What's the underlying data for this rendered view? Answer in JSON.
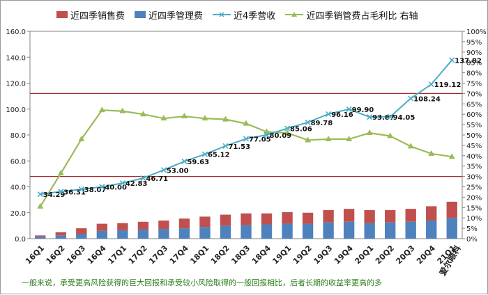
{
  "chart_data": {
    "type": "bar",
    "categories": [
      "16Q1",
      "16Q2",
      "16Q3",
      "16Q4",
      "17Q1",
      "17Q2",
      "17Q3",
      "17Q4",
      "18Q1",
      "18Q2",
      "18Q3",
      "18Q4",
      "19Q1",
      "19Q2",
      "19Q3",
      "19Q4",
      "20Q1",
      "20Q2",
      "20Q3",
      "20Q4",
      "21Q1"
    ],
    "series": [
      {
        "name": "近四季销售费",
        "kind": "bar-stack-top",
        "color": "#c0504d",
        "values": [
          1.0,
          2.5,
          4.5,
          5.5,
          5.5,
          6.0,
          6.5,
          7.5,
          8.0,
          8.5,
          9.0,
          8.5,
          9.0,
          8.5,
          9.5,
          10.0,
          10.0,
          9.5,
          10.0,
          11.0,
          12.5
        ]
      },
      {
        "name": "近四季管理费",
        "kind": "bar-stack-bottom",
        "color": "#4f81bd",
        "values": [
          1.5,
          2.5,
          3.5,
          6.0,
          6.5,
          7.0,
          7.5,
          8.0,
          9.0,
          10.0,
          10.5,
          11.0,
          11.5,
          11.5,
          12.5,
          13.0,
          12.0,
          12.5,
          13.0,
          14.0,
          16.0
        ]
      },
      {
        "name": "近4季营收",
        "kind": "line",
        "color": "#4bacc6",
        "values": [
          34.29,
          36.31,
          38.07,
          40.0,
          42.83,
          46.71,
          53.0,
          59.63,
          65.12,
          71.53,
          77.05,
          80.09,
          85.06,
          89.78,
          96.16,
          99.9,
          93.87,
          94.05,
          108.24,
          119.12,
          137.82
        ],
        "labels": [
          "34.29",
          "36.31",
          "38.07",
          "40.00",
          "42.83",
          "46.71",
          "53.00",
          "59.63",
          "65.12",
          "71.53",
          "77.05",
          "80.09",
          "85.06",
          "89.78",
          "96.16",
          "99.90",
          "93.87",
          "94.05",
          "108.24",
          "119.12",
          "137.82"
        ]
      },
      {
        "name": "近四季销管费占毛利比 右轴",
        "kind": "line-right",
        "color": "#9bbb59",
        "values": [
          15.5,
          31.5,
          48,
          62,
          61.5,
          60,
          58,
          59,
          58,
          57.5,
          55.5,
          51.5,
          51,
          47.5,
          48,
          48,
          51,
          49.5,
          44.5,
          41,
          39.5
        ]
      }
    ],
    "y_left": {
      "min": 0,
      "max": 160,
      "step": 20,
      "ticks": [
        "0.0",
        "20.0",
        "40.0",
        "60.0",
        "80.0",
        "100.0",
        "120.0",
        "140.0",
        "160.0"
      ]
    },
    "y_right": {
      "min": 0,
      "max": 100,
      "step": 5
    },
    "reference_lines_right": [
      70,
      30
    ],
    "reference_line_color": "#a52a2a",
    "watermark": "爱尔眼科",
    "grid": false,
    "legend_position": "top"
  },
  "footnote": "一般来说，承受更高风险获得的巨大回报和承受较小风险取得的一般回报相比，后者长期的收益率更高的多"
}
